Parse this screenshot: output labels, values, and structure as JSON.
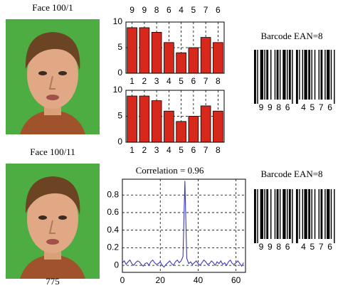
{
  "faces": [
    {
      "title": "Face 100/1"
    },
    {
      "title": "Face 100/11",
      "caption": "775"
    }
  ],
  "barcodes": [
    {
      "title": "Barcode EAN=8",
      "digits": [
        "9",
        "9",
        "8",
        "6",
        "4",
        "5",
        "7",
        "6"
      ]
    },
    {
      "title": "Barcode EAN=8",
      "digits": [
        "9",
        "9",
        "8",
        "6",
        "4",
        "5",
        "7",
        "6"
      ]
    }
  ],
  "chart_data": [
    {
      "type": "bar",
      "categories": [
        "1",
        "2",
        "3",
        "4",
        "5",
        "6",
        "7",
        "8"
      ],
      "values": [
        8.9,
        8.9,
        8,
        6,
        4,
        5,
        7,
        6
      ],
      "value_labels": [
        "9",
        "9",
        "8",
        "6",
        "4",
        "5",
        "7",
        "6"
      ],
      "color": "#d8281c",
      "ylim": [
        0,
        10
      ],
      "yticks": [
        0,
        5,
        10
      ],
      "grid": true
    },
    {
      "type": "bar",
      "categories": [
        "1",
        "2",
        "3",
        "4",
        "5",
        "6",
        "7",
        "8"
      ],
      "values": [
        8.9,
        8.9,
        8,
        6,
        4,
        5,
        7,
        6
      ],
      "color": "#d8281c",
      "ylim": [
        0,
        10
      ],
      "yticks": [
        0,
        5,
        10
      ],
      "grid": true
    },
    {
      "type": "line",
      "title": "Correlation = 0.96",
      "x": [
        0,
        1,
        2,
        3,
        4,
        5,
        6,
        7,
        8,
        9,
        10,
        11,
        12,
        13,
        14,
        15,
        16,
        17,
        18,
        19,
        20,
        21,
        22,
        23,
        24,
        25,
        26,
        27,
        28,
        29,
        30,
        31,
        32,
        33,
        34,
        35,
        36,
        37,
        38,
        39,
        40,
        41,
        42,
        43,
        44,
        45,
        46,
        47,
        48,
        49,
        50,
        51,
        52,
        53,
        54,
        55,
        56,
        57,
        58,
        59,
        60,
        61,
        62,
        63,
        64
      ],
      "values": [
        0.03,
        0.05,
        0.01,
        0.04,
        0.06,
        0.02,
        0.0,
        0.03,
        0.05,
        0.04,
        0.01,
        -0.01,
        0.02,
        0.03,
        0.0,
        0.04,
        0.06,
        0.03,
        0.01,
        0.02,
        0.04,
        0.0,
        -0.02,
        0.01,
        0.03,
        0.05,
        0.02,
        0.0,
        0.04,
        0.06,
        0.03,
        0.05,
        0.1,
        0.96,
        0.08,
        0.02,
        0.04,
        0.01,
        0.03,
        0.05,
        0.02,
        0.0,
        0.03,
        0.06,
        0.04,
        0.01,
        0.02,
        0.05,
        0.03,
        0.0,
        0.04,
        0.02,
        0.05,
        0.01,
        0.03,
        0.0,
        0.04,
        0.06,
        0.02,
        0.01,
        0.03,
        0.05,
        0.02,
        -0.01,
        0.03
      ],
      "color": "#3a3ab8",
      "xlim": [
        0,
        65
      ],
      "ylim": [
        -0.08,
        0.98
      ],
      "xticks": [
        0,
        20,
        40,
        60
      ],
      "yticks": [
        0,
        0.2,
        0.4,
        0.6,
        0.8
      ],
      "grid": true
    }
  ]
}
